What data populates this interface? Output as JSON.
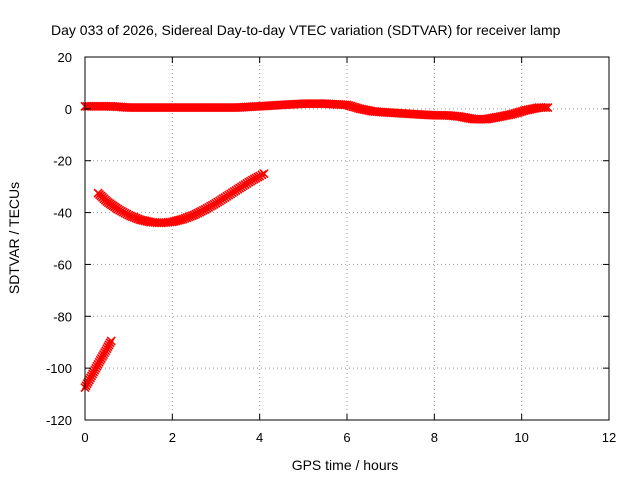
{
  "chart_data": {
    "type": "scatter",
    "title": "Day 033 of 2026, Sidereal Day-to-day VTEC variation (SDTVAR) for receiver lamp",
    "xlabel": "GPS time / hours",
    "ylabel": "SDTVAR / TECUs",
    "xlim": [
      0,
      12
    ],
    "ylim": [
      -120,
      20
    ],
    "xticks": [
      "0",
      "2",
      "4",
      "6",
      "8",
      "10",
      "12"
    ],
    "yticks": [
      "20",
      "0",
      "-20",
      "-40",
      "-60",
      "-80",
      "-100",
      "-120"
    ],
    "grid": true,
    "legend": "none",
    "marker": "cross",
    "color": "#ff0000",
    "series": [
      {
        "x": [
          0.0,
          0.3,
          0.6,
          1.0,
          1.5,
          2.0,
          2.5,
          3.0,
          3.5,
          4.0,
          4.5,
          5.0,
          5.5,
          6.0,
          6.3,
          6.6,
          7.0,
          7.5,
          8.0,
          8.3,
          8.6,
          8.9,
          9.2,
          9.5,
          9.8,
          10.1,
          10.4,
          10.6
        ],
        "y": [
          1,
          1,
          1,
          0.5,
          0.5,
          0.5,
          0.5,
          0.5,
          0.5,
          1,
          1.5,
          2,
          2,
          1.5,
          0,
          -1,
          -1.5,
          -2,
          -2.5,
          -2.5,
          -3,
          -4,
          -4,
          -3,
          -2,
          -0.5,
          0.5,
          0.5
        ]
      },
      {
        "x": [
          0.3,
          0.5,
          0.75,
          1.0,
          1.25,
          1.5,
          1.75,
          2.0,
          2.25,
          2.5,
          2.75,
          3.0,
          3.25,
          3.5,
          3.75,
          4.0,
          4.1
        ],
        "y": [
          -32.5,
          -35.7,
          -38.7,
          -41.0,
          -42.7,
          -43.7,
          -44.0,
          -43.6,
          -42.5,
          -40.9,
          -38.8,
          -36.4,
          -33.7,
          -31.0,
          -28.3,
          -25.9,
          -25.0
        ]
      },
      {
        "x": [
          0.0,
          0.1,
          0.2,
          0.3,
          0.4,
          0.5,
          0.6
        ],
        "y": [
          -107.5,
          -104.5,
          -101.5,
          -98.5,
          -95.5,
          -92.5,
          -89.5
        ]
      }
    ]
  }
}
